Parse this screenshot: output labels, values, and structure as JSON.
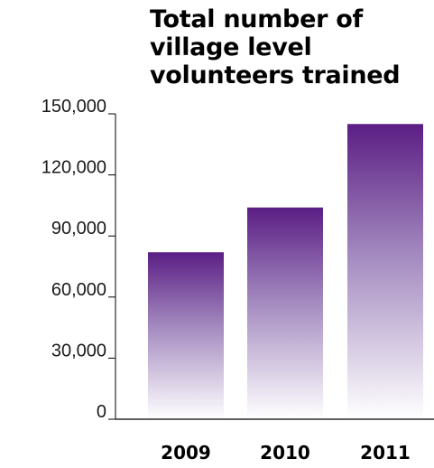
{
  "chart_data": {
    "type": "bar",
    "title": "Total number of village level volunteers trained",
    "title_lines": [
      "Total number of",
      "village level",
      "volunteers trained"
    ],
    "categories": [
      "2009",
      "2010",
      "2011"
    ],
    "values": [
      82000,
      104000,
      145000
    ],
    "ylim": [
      0,
      150000
    ],
    "yticks": [
      0,
      30000,
      60000,
      90000,
      120000,
      150000
    ],
    "ytick_labels": [
      "0",
      "30,000",
      "60,000",
      "90,000",
      "120,000",
      "150,000"
    ],
    "xlabel": "",
    "ylabel": "",
    "grid": false,
    "legend": "none",
    "colors": {
      "bar_top": "#5b1e84",
      "bar_mid": "#a48bc0",
      "bar_bottom": "#ffffff",
      "axis": "#000000"
    }
  }
}
